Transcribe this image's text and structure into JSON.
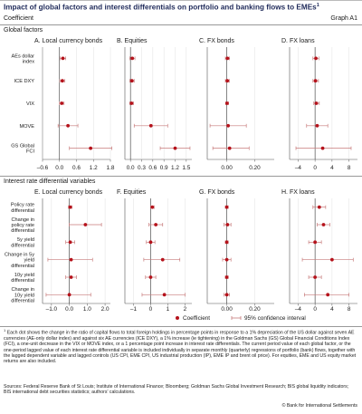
{
  "title": "Impact of global factors and interest differentials on portfolio and banking flows to EMEs",
  "title_note": "1",
  "subtitle_left": "Coefficient",
  "subtitle_right": "Graph A1",
  "sections": [
    {
      "label": "Global factors"
    },
    {
      "label": "Interest rate differential variables"
    }
  ],
  "legend": {
    "coefficient": "Coefficient",
    "ci": "95% confidence interval"
  },
  "colors": {
    "marker": "#b5121b",
    "ci": "#c77a7a",
    "title": "#1f2a5a"
  },
  "footnote_mark": "1",
  "footnote": "Each dot shows the change in the ratio of capital flows to total foreign holdings in percentage points in response to a 1% depreciation of the US dollar against seven AE currencies (AE-only dollar index) and against six AE currencies (ICE DXY), a 1% increase (ie tightening) in the Goldman Sachs (GS) Global Financial Conditions Index (FCI), a one-unit decrease in the VIX or MOVE index, or a 1 percentage point increase in interest rate differentials. The current period value of each global factor, or the one-period lagged value of each interest rate differential variable is included individually in separate monthly (quarterly) regressions of portfolio (bank) flows, together with the lagged dependent variable and lagged controls (US CPI, EME CPI, US industrial production (IP), EME IP and brent oil price). For equities, EME and US equity market returns are also included.",
  "sources": "Sources: Federal Reserve Bank of St Louis; Institute of International Finance; Bloomberg; Goldman Sachs Global Investment Research; BIS global liquidity indicators; BIS international debt securities statistics; authors' calculations.",
  "copyright": "© Bank for International Settlements",
  "chart_data": [
    {
      "type": "scatter",
      "title": "A. Local currency bonds",
      "categories": [
        "AEs dollar index",
        "ICE DXY",
        "VIX",
        "MOVE",
        "GS Global FCI"
      ],
      "ticks": [
        -0.6,
        0.0,
        0.6,
        1.2,
        1.8
      ],
      "tick_labels": [
        "–0.6",
        "0.0",
        "0.6",
        "1.2",
        "1.8"
      ],
      "xlim": [
        -0.6,
        1.8
      ],
      "values": [
        0.12,
        0.1,
        0.08,
        0.3,
        1.1
      ],
      "ci_low": [
        0.02,
        0.01,
        0.0,
        -0.05,
        0.35
      ],
      "ci_high": [
        0.22,
        0.19,
        0.16,
        0.65,
        1.85
      ]
    },
    {
      "type": "scatter",
      "title": "B. Equities",
      "categories": [
        "AEs dollar index",
        "ICE DXY",
        "VIX",
        "MOVE",
        "GS Global FCI"
      ],
      "ticks": [
        0.0,
        0.3,
        0.6,
        0.9,
        1.2,
        1.5
      ],
      "tick_labels": [
        "0.0",
        "0.3",
        "0.6",
        "0.9",
        "1.2",
        "1.5"
      ],
      "xlim": [
        -0.15,
        1.65
      ],
      "values": [
        0.05,
        0.04,
        0.03,
        0.55,
        1.2
      ],
      "ci_low": [
        -0.02,
        -0.02,
        -0.02,
        0.1,
        0.8
      ],
      "ci_high": [
        0.12,
        0.1,
        0.08,
        1.0,
        1.6
      ]
    },
    {
      "type": "scatter",
      "title": "C. FX bonds",
      "categories": [
        "AEs dollar index",
        "ICE DXY",
        "VIX",
        "MOVE",
        "GS Global FCI"
      ],
      "ticks": [
        0.0,
        0.2
      ],
      "tick_labels": [
        "0.00",
        "0.20"
      ],
      "xlim": [
        -0.14,
        0.34
      ],
      "values": [
        0.005,
        0.004,
        0.002,
        0.01,
        0.02
      ],
      "ci_low": [
        -0.01,
        -0.01,
        -0.008,
        -0.12,
        -0.1
      ],
      "ci_high": [
        0.02,
        0.018,
        0.012,
        0.14,
        0.16
      ]
    },
    {
      "type": "scatter",
      "title": "D. FX loans",
      "categories": [
        "AEs dollar index",
        "ICE DXY",
        "VIX",
        "MOVE",
        "GS Global FCI"
      ],
      "ticks": [
        -4,
        0,
        4,
        8
      ],
      "tick_labels": [
        "–4",
        "0",
        "4",
        "8"
      ],
      "xlim": [
        -6,
        10
      ],
      "values": [
        0.2,
        0.1,
        0.3,
        0.5,
        1.8
      ],
      "ci_low": [
        -0.5,
        -0.5,
        -0.3,
        -2.0,
        -4.5
      ],
      "ci_high": [
        0.9,
        0.8,
        1.0,
        3.0,
        8.5
      ]
    },
    {
      "type": "scatter",
      "title": "E. Local currency bonds",
      "categories": [
        "Policy rate differential",
        "Change in policy rate differential",
        "5y yield differential",
        "Change in 5y yield differential",
        "10y yield differential",
        "Change in 10y yield differential"
      ],
      "ticks": [
        -1.0,
        0.0,
        1.0,
        2.0
      ],
      "tick_labels": [
        "–1.0",
        "0.0",
        "1.0",
        "2.0"
      ],
      "xlim": [
        -1.5,
        2.3
      ],
      "values": [
        0.05,
        0.9,
        0.05,
        0.1,
        0.1,
        0.0
      ],
      "ci_low": [
        -0.05,
        0.0,
        -0.2,
        -1.2,
        -0.2,
        -1.3
      ],
      "ci_high": [
        0.15,
        1.8,
        0.3,
        1.3,
        0.4,
        1.2
      ]
    },
    {
      "type": "scatter",
      "title": "F. Equities",
      "categories": [
        "Policy rate differential",
        "Change in policy rate differential",
        "5y yield differential",
        "Change in 5y yield differential",
        "10y yield differential",
        "Change in 10y yield differential"
      ],
      "ticks": [
        -1,
        0,
        1,
        2
      ],
      "tick_labels": [
        "–1",
        "0",
        "1",
        "2"
      ],
      "xlim": [
        -1.5,
        2.4
      ],
      "values": [
        0.1,
        0.3,
        0.0,
        0.7,
        0.0,
        0.8
      ],
      "ci_low": [
        0.0,
        -0.1,
        -0.25,
        -0.4,
        -0.3,
        -0.5
      ],
      "ci_high": [
        0.2,
        0.7,
        0.25,
        1.7,
        0.3,
        2.0
      ]
    },
    {
      "type": "scatter",
      "title": "G. FX bonds",
      "categories": [
        "Policy rate differential",
        "Change in policy rate differential",
        "5y yield differential",
        "Change in 5y yield differential",
        "10y yield differential",
        "Change in 10y yield differential"
      ],
      "ticks": [
        0.0,
        0.2
      ],
      "tick_labels": [
        "0.00",
        "0.20"
      ],
      "xlim": [
        -0.14,
        0.34
      ],
      "values": [
        0.0,
        0.005,
        0.0,
        0.0,
        0.0,
        0.0
      ],
      "ci_low": [
        -0.01,
        -0.02,
        -0.01,
        -0.03,
        -0.01,
        -0.02
      ],
      "ci_high": [
        0.01,
        0.03,
        0.01,
        0.03,
        0.01,
        0.02
      ]
    },
    {
      "type": "scatter",
      "title": "H. FX loans",
      "categories": [
        "Policy rate differential",
        "Change in policy rate differential",
        "5y yield differential",
        "Change in 5y yield differential",
        "10y yield differential",
        "Change in 10y yield differential"
      ],
      "ticks": [
        -4,
        0,
        4,
        8
      ],
      "tick_labels": [
        "–4",
        "0",
        "4",
        "8"
      ],
      "xlim": [
        -6,
        10
      ],
      "values": [
        1.0,
        2.0,
        0.0,
        4.0,
        0.0,
        3.0
      ],
      "ci_low": [
        -0.5,
        0.5,
        -1.5,
        -3.0,
        -1.5,
        -2.5
      ],
      "ci_high": [
        2.5,
        3.5,
        1.5,
        9.0,
        1.5,
        8.0
      ]
    }
  ]
}
